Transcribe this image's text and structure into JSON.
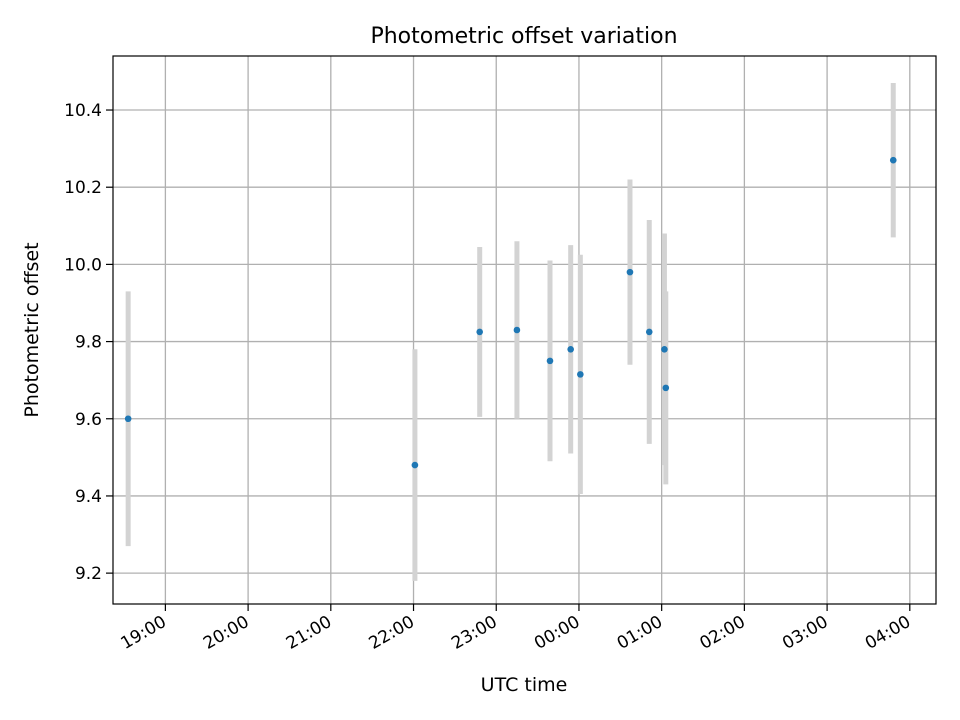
{
  "chart_data": {
    "type": "scatter",
    "title": "Photometric offset variation",
    "xlabel": "UTC time",
    "ylabel": "Photometric offset",
    "x_tick_labels": [
      "19:00",
      "20:00",
      "21:00",
      "22:00",
      "23:00",
      "00:00",
      "01:00",
      "02:00",
      "03:00",
      "04:00"
    ],
    "y_tick_labels": [
      "9.2",
      "9.4",
      "9.6",
      "9.8",
      "10.0",
      "10.2",
      "10.4"
    ],
    "ylim": [
      9.12,
      10.54
    ],
    "xlim": [
      "18:22",
      "04:19"
    ],
    "grid": true,
    "marker_color": "#1f77b4",
    "errorbar_color": "#d3d3d3",
    "points": [
      {
        "x": "18:33",
        "y": 9.6,
        "err": 0.33
      },
      {
        "x": "22:01",
        "y": 9.48,
        "err": 0.3
      },
      {
        "x": "22:48",
        "y": 9.825,
        "err": 0.22
      },
      {
        "x": "23:15",
        "y": 9.83,
        "err": 0.23
      },
      {
        "x": "23:39",
        "y": 9.75,
        "err": 0.26
      },
      {
        "x": "23:54",
        "y": 9.78,
        "err": 0.27
      },
      {
        "x": "00:01",
        "y": 9.715,
        "err": 0.31
      },
      {
        "x": "00:37",
        "y": 9.98,
        "err": 0.24
      },
      {
        "x": "00:51",
        "y": 9.825,
        "err": 0.29
      },
      {
        "x": "01:02",
        "y": 9.78,
        "err": 0.3
      },
      {
        "x": "01:03",
        "y": 9.68,
        "err": 0.25
      },
      {
        "x": "03:48",
        "y": 10.27,
        "err": 0.2
      }
    ]
  }
}
